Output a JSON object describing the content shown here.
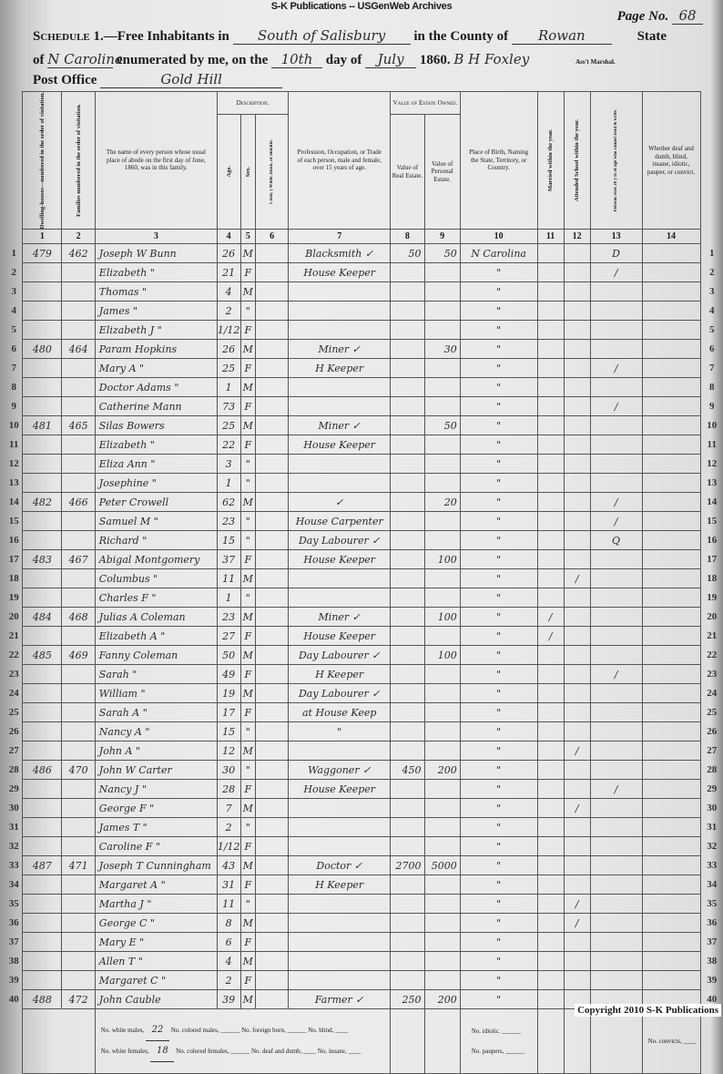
{
  "banner": "S-K Publications -- USGenWeb Archives",
  "page": {
    "label": "Page No.",
    "value": "68"
  },
  "heading": {
    "schedule": "Schedule 1.",
    "free_inhabitants": "—Free Inhabitants in",
    "place": "South of Salisbury",
    "county_label": "in the County of",
    "county": "Rowan",
    "state_label": "State",
    "of_label": "of",
    "state": "N Carolina",
    "enumerated": "enumerated by me, on the",
    "day": "10th",
    "day_of": "day of",
    "month": "July",
    "year": "1860.",
    "marshal": "B H Foxley",
    "marshal_label": "Ass't Marshal.",
    "post_office_label": "Post Office",
    "post_office": "Gold Hill"
  },
  "columns": {
    "c1": "Dwelling-houses—numbered in the order of visitation.",
    "c2": "Families numbered in the order of visitation.",
    "c3": "The name of every person whose usual place of abode on the first day of June, 1860, was in this family.",
    "description": "Description.",
    "c4": "Age.",
    "c5": "Sex.",
    "c6": "Color, { White, black, or mulatto.",
    "c7": "Profession, Occupation, or Trade of each person, male and female, over 15 years of age.",
    "estate": "Value of Estate Owned.",
    "c8": "Value of Real Estate.",
    "c9": "Value of Personal Estate.",
    "c10": "Place of Birth, Naming the State, Territory, or Country.",
    "c11": "Married within the year.",
    "c12": "Attended School within the year.",
    "c13": "Persons over 20 y'rs of age who cannot read & write.",
    "c14": "Whether deaf and dumb, blind, insane, idiotic, pauper, or convict.",
    "numbers": [
      "1",
      "2",
      "3",
      "4",
      "5",
      "6",
      "7",
      "8",
      "9",
      "10",
      "11",
      "12",
      "13",
      "14"
    ]
  },
  "rows": [
    {
      "line": "1",
      "dwelling": "479",
      "family": "462",
      "name": "Joseph W Bunn",
      "age": "26",
      "sex": "M",
      "occupation": "Blacksmith ✓",
      "real": "50",
      "personal": "50",
      "birth": "N Carolina",
      "married": "",
      "school": "",
      "illiterate": "D",
      "notes": ""
    },
    {
      "line": "2",
      "dwelling": "",
      "family": "",
      "name": "Elizabeth  \"",
      "age": "21",
      "sex": "F",
      "occupation": "House Keeper",
      "real": "",
      "personal": "",
      "birth": "\"",
      "married": "",
      "school": "",
      "illiterate": "/",
      "notes": ""
    },
    {
      "line": "3",
      "dwelling": "",
      "family": "",
      "name": "Thomas  \"",
      "age": "4",
      "sex": "M",
      "occupation": "",
      "real": "",
      "personal": "",
      "birth": "\"",
      "married": "",
      "school": "",
      "illiterate": "",
      "notes": ""
    },
    {
      "line": "4",
      "dwelling": "",
      "family": "",
      "name": "James  \"",
      "age": "2",
      "sex": "\"",
      "occupation": "",
      "real": "",
      "personal": "",
      "birth": "\"",
      "married": "",
      "school": "",
      "illiterate": "",
      "notes": ""
    },
    {
      "line": "5",
      "dwelling": "",
      "family": "",
      "name": "Elizabeth J  \"",
      "age": "1/12",
      "sex": "F",
      "occupation": "",
      "real": "",
      "personal": "",
      "birth": "\"",
      "married": "",
      "school": "",
      "illiterate": "",
      "notes": ""
    },
    {
      "line": "6",
      "dwelling": "480",
      "family": "464",
      "name": "Param Hopkins",
      "age": "26",
      "sex": "M",
      "occupation": "Miner ✓",
      "real": "",
      "personal": "30",
      "birth": "\"",
      "married": "",
      "school": "",
      "illiterate": "",
      "notes": ""
    },
    {
      "line": "7",
      "dwelling": "",
      "family": "",
      "name": "Mary A  \"",
      "age": "25",
      "sex": "F",
      "occupation": "H Keeper",
      "real": "",
      "personal": "",
      "birth": "\"",
      "married": "",
      "school": "",
      "illiterate": "/",
      "notes": ""
    },
    {
      "line": "8",
      "dwelling": "",
      "family": "",
      "name": "Doctor Adams  \"",
      "age": "1",
      "sex": "M",
      "occupation": "",
      "real": "",
      "personal": "",
      "birth": "\"",
      "married": "",
      "school": "",
      "illiterate": "",
      "notes": ""
    },
    {
      "line": "9",
      "dwelling": "",
      "family": "",
      "name": "Catherine Mann",
      "age": "73",
      "sex": "F",
      "occupation": "",
      "real": "",
      "personal": "",
      "birth": "\"",
      "married": "",
      "school": "",
      "illiterate": "/",
      "notes": ""
    },
    {
      "line": "10",
      "dwelling": "481",
      "family": "465",
      "name": "Silas Bowers",
      "age": "25",
      "sex": "M",
      "occupation": "Miner ✓",
      "real": "",
      "personal": "50",
      "birth": "\"",
      "married": "",
      "school": "",
      "illiterate": "",
      "notes": ""
    },
    {
      "line": "11",
      "dwelling": "",
      "family": "",
      "name": "Elizabeth  \"",
      "age": "22",
      "sex": "F",
      "occupation": "House Keeper",
      "real": "",
      "personal": "",
      "birth": "\"",
      "married": "",
      "school": "",
      "illiterate": "",
      "notes": ""
    },
    {
      "line": "12",
      "dwelling": "",
      "family": "",
      "name": "Eliza Ann  \"",
      "age": "3",
      "sex": "\"",
      "occupation": "",
      "real": "",
      "personal": "",
      "birth": "\"",
      "married": "",
      "school": "",
      "illiterate": "",
      "notes": ""
    },
    {
      "line": "13",
      "dwelling": "",
      "family": "",
      "name": "Josephine  \"",
      "age": "1",
      "sex": "\"",
      "occupation": "",
      "real": "",
      "personal": "",
      "birth": "\"",
      "married": "",
      "school": "",
      "illiterate": "",
      "notes": ""
    },
    {
      "line": "14",
      "dwelling": "482",
      "family": "466",
      "name": "Peter Crowell",
      "age": "62",
      "sex": "M",
      "occupation": "✓",
      "real": "",
      "personal": "20",
      "birth": "\"",
      "married": "",
      "school": "",
      "illiterate": "/",
      "notes": ""
    },
    {
      "line": "15",
      "dwelling": "",
      "family": "",
      "name": "Samuel M  \"",
      "age": "23",
      "sex": "\"",
      "occupation": "House Carpenter",
      "real": "",
      "personal": "",
      "birth": "\"",
      "married": "",
      "school": "",
      "illiterate": "/",
      "notes": ""
    },
    {
      "line": "16",
      "dwelling": "",
      "family": "",
      "name": "Richard  \"",
      "age": "15",
      "sex": "\"",
      "occupation": "Day Labourer ✓",
      "real": "",
      "personal": "",
      "birth": "\"",
      "married": "",
      "school": "",
      "illiterate": "Q",
      "notes": ""
    },
    {
      "line": "17",
      "dwelling": "483",
      "family": "467",
      "name": "Abigal Montgomery",
      "age": "37",
      "sex": "F",
      "occupation": "House Keeper",
      "real": "",
      "personal": "100",
      "birth": "\"",
      "married": "",
      "school": "",
      "illiterate": "",
      "notes": ""
    },
    {
      "line": "18",
      "dwelling": "",
      "family": "",
      "name": "Columbus  \"",
      "age": "11",
      "sex": "M",
      "occupation": "",
      "real": "",
      "personal": "",
      "birth": "\"",
      "married": "",
      "school": "/",
      "illiterate": "",
      "notes": ""
    },
    {
      "line": "19",
      "dwelling": "",
      "family": "",
      "name": "Charles F  \"",
      "age": "1",
      "sex": "\"",
      "occupation": "",
      "real": "",
      "personal": "",
      "birth": "\"",
      "married": "",
      "school": "",
      "illiterate": "",
      "notes": ""
    },
    {
      "line": "20",
      "dwelling": "484",
      "family": "468",
      "name": "Julias A Coleman",
      "age": "23",
      "sex": "M",
      "occupation": "Miner ✓",
      "real": "",
      "personal": "100",
      "birth": "\"",
      "married": "/",
      "school": "",
      "illiterate": "",
      "notes": ""
    },
    {
      "line": "21",
      "dwelling": "",
      "family": "",
      "name": "Elizabeth A  \"",
      "age": "27",
      "sex": "F",
      "occupation": "House Keeper",
      "real": "",
      "personal": "",
      "birth": "\"",
      "married": "/",
      "school": "",
      "illiterate": "",
      "notes": ""
    },
    {
      "line": "22",
      "dwelling": "485",
      "family": "469",
      "name": "Fanny Coleman",
      "age": "50",
      "sex": "M",
      "occupation": "Day Labourer ✓",
      "real": "",
      "personal": "100",
      "birth": "\"",
      "married": "",
      "school": "",
      "illiterate": "",
      "notes": ""
    },
    {
      "line": "23",
      "dwelling": "",
      "family": "",
      "name": "Sarah  \"",
      "age": "49",
      "sex": "F",
      "occupation": "H Keeper",
      "real": "",
      "personal": "",
      "birth": "\"",
      "married": "",
      "school": "",
      "illiterate": "/",
      "notes": ""
    },
    {
      "line": "24",
      "dwelling": "",
      "family": "",
      "name": "William  \"",
      "age": "19",
      "sex": "M",
      "occupation": "Day Labourer ✓",
      "real": "",
      "personal": "",
      "birth": "\"",
      "married": "",
      "school": "",
      "illiterate": "",
      "notes": ""
    },
    {
      "line": "25",
      "dwelling": "",
      "family": "",
      "name": "Sarah A  \"",
      "age": "17",
      "sex": "F",
      "occupation": "at House Keep",
      "real": "",
      "personal": "",
      "birth": "\"",
      "married": "",
      "school": "",
      "illiterate": "",
      "notes": ""
    },
    {
      "line": "26",
      "dwelling": "",
      "family": "",
      "name": "Nancy A  \"",
      "age": "15",
      "sex": "\"",
      "occupation": "\"",
      "real": "",
      "personal": "",
      "birth": "\"",
      "married": "",
      "school": "",
      "illiterate": "",
      "notes": ""
    },
    {
      "line": "27",
      "dwelling": "",
      "family": "",
      "name": "John A  \"",
      "age": "12",
      "sex": "M",
      "occupation": "",
      "real": "",
      "personal": "",
      "birth": "\"",
      "married": "",
      "school": "/",
      "illiterate": "",
      "notes": ""
    },
    {
      "line": "28",
      "dwelling": "486",
      "family": "470",
      "name": "John W Carter",
      "age": "30",
      "sex": "\"",
      "occupation": "Waggoner ✓",
      "real": "450",
      "personal": "200",
      "birth": "\"",
      "married": "",
      "school": "",
      "illiterate": "",
      "notes": ""
    },
    {
      "line": "29",
      "dwelling": "",
      "family": "",
      "name": "Nancy J  \"",
      "age": "28",
      "sex": "F",
      "occupation": "House Keeper",
      "real": "",
      "personal": "",
      "birth": "\"",
      "married": "",
      "school": "",
      "illiterate": "/",
      "notes": ""
    },
    {
      "line": "30",
      "dwelling": "",
      "family": "",
      "name": "George F  \"",
      "age": "7",
      "sex": "M",
      "occupation": "",
      "real": "",
      "personal": "",
      "birth": "\"",
      "married": "",
      "school": "/",
      "illiterate": "",
      "notes": ""
    },
    {
      "line": "31",
      "dwelling": "",
      "family": "",
      "name": "James T  \"",
      "age": "2",
      "sex": "\"",
      "occupation": "",
      "real": "",
      "personal": "",
      "birth": "\"",
      "married": "",
      "school": "",
      "illiterate": "",
      "notes": ""
    },
    {
      "line": "32",
      "dwelling": "",
      "family": "",
      "name": "Caroline F  \"",
      "age": "1/12",
      "sex": "F",
      "occupation": "",
      "real": "",
      "personal": "",
      "birth": "\"",
      "married": "",
      "school": "",
      "illiterate": "",
      "notes": ""
    },
    {
      "line": "33",
      "dwelling": "487",
      "family": "471",
      "name": "Joseph T Cunningham",
      "age": "43",
      "sex": "M",
      "occupation": "Doctor ✓",
      "real": "2700",
      "personal": "5000",
      "birth": "\"",
      "married": "",
      "school": "",
      "illiterate": "",
      "notes": ""
    },
    {
      "line": "34",
      "dwelling": "",
      "family": "",
      "name": "Margaret A  \"",
      "age": "31",
      "sex": "F",
      "occupation": "H Keeper",
      "real": "",
      "personal": "",
      "birth": "\"",
      "married": "",
      "school": "",
      "illiterate": "",
      "notes": ""
    },
    {
      "line": "35",
      "dwelling": "",
      "family": "",
      "name": "Martha J  \"",
      "age": "11",
      "sex": "\"",
      "occupation": "",
      "real": "",
      "personal": "",
      "birth": "\"",
      "married": "",
      "school": "/",
      "illiterate": "",
      "notes": ""
    },
    {
      "line": "36",
      "dwelling": "",
      "family": "",
      "name": "George C  \"",
      "age": "8",
      "sex": "M",
      "occupation": "",
      "real": "",
      "personal": "",
      "birth": "\"",
      "married": "",
      "school": "/",
      "illiterate": "",
      "notes": ""
    },
    {
      "line": "37",
      "dwelling": "",
      "family": "",
      "name": "Mary E  \"",
      "age": "6",
      "sex": "F",
      "occupation": "",
      "real": "",
      "personal": "",
      "birth": "\"",
      "married": "",
      "school": "",
      "illiterate": "",
      "notes": ""
    },
    {
      "line": "38",
      "dwelling": "",
      "family": "",
      "name": "Allen T  \"",
      "age": "4",
      "sex": "M",
      "occupation": "",
      "real": "",
      "personal": "",
      "birth": "\"",
      "married": "",
      "school": "",
      "illiterate": "",
      "notes": ""
    },
    {
      "line": "39",
      "dwelling": "",
      "family": "",
      "name": "Margaret C  \"",
      "age": "2",
      "sex": "F",
      "occupation": "",
      "real": "",
      "personal": "",
      "birth": "\"",
      "married": "",
      "school": "",
      "illiterate": "",
      "notes": ""
    },
    {
      "line": "40",
      "dwelling": "488",
      "family": "472",
      "name": "John Cauble",
      "age": "39",
      "sex": "M",
      "occupation": "Farmer ✓",
      "real": "250",
      "personal": "200",
      "birth": "\"",
      "married": "",
      "school": "",
      "illiterate": "",
      "notes": ""
    }
  ],
  "footer": {
    "white_males_label": "No. white males,",
    "white_males": "22",
    "white_females_label": "No. white females,",
    "white_females": "18",
    "colored_males_label": "No. colored males, ______",
    "colored_females_label": "No. colored females, ______",
    "foreign_born_label": "No. foreign born, ______",
    "deaf_dumb_label": "No. deaf and dumb, ____",
    "blind_label": "No. blind, ____",
    "insane_label": "No. insane, ____",
    "idiotic_label": "No. idiotic. ______",
    "paupers_label": "No. paupers, ______",
    "convicts_label": "No. convicts, ____"
  },
  "copyright": "Copyright 2010 S-K Publications"
}
